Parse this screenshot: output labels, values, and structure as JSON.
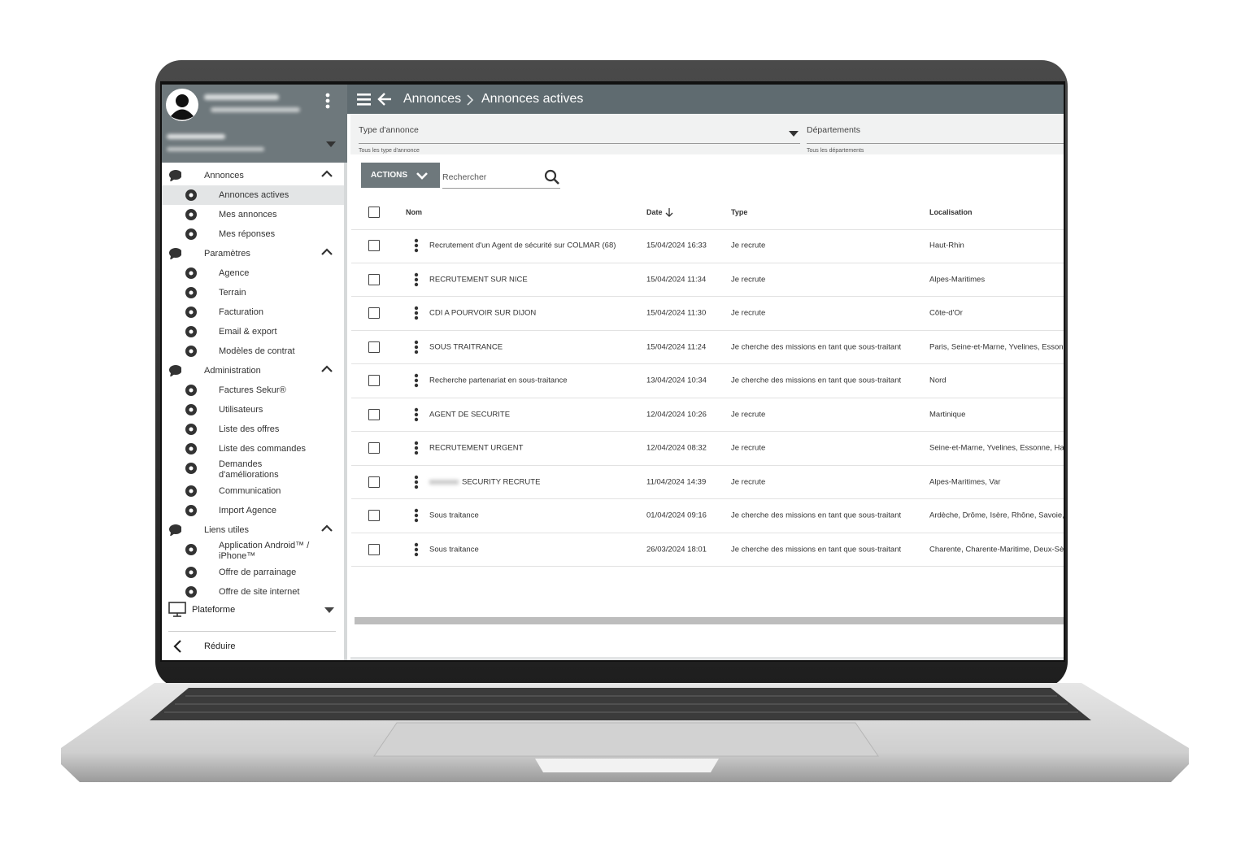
{
  "header": {
    "breadcrumb": [
      "Annonces",
      "Annonces actives"
    ]
  },
  "sidebar": {
    "groups": [
      {
        "label": "Annonces",
        "items": [
          "Annonces actives",
          "Mes annonces",
          "Mes réponses"
        ]
      },
      {
        "label": "Paramètres",
        "items": [
          "Agence",
          "Terrain",
          "Facturation",
          "Email & export",
          "Modèles de contrat"
        ]
      },
      {
        "label": "Administration",
        "items": [
          "Factures Sekur®",
          "Utilisateurs",
          "Liste des offres",
          "Liste des commandes",
          "Demandes d'améliorations",
          "Communication",
          "Import Agence"
        ]
      },
      {
        "label": "Liens utiles",
        "items": [
          "Application Android™ / iPhone™",
          "Offre de parrainage",
          "Offre de site internet"
        ]
      }
    ],
    "footer": [
      "Plateforme",
      "Réduire"
    ]
  },
  "filters": [
    {
      "label": "Type d'annonce",
      "value": "Tous les type d'annonce"
    },
    {
      "label": "Départements",
      "value": "Tous les départements"
    }
  ],
  "toolbar": {
    "button": "ACTIONS",
    "search_placeholder": "Rechercher"
  },
  "table": {
    "columns": [
      "Nom",
      "Date",
      "Type",
      "Localisation"
    ],
    "rows": [
      [
        "Recrutement d'un Agent de sécurité sur COLMAR (68)",
        "15/04/2024 16:33",
        "Je recrute",
        "Haut-Rhin"
      ],
      [
        "RECRUTEMENT SUR NICE",
        "15/04/2024 11:34",
        "Je recrute",
        "Alpes-Maritimes"
      ],
      [
        "CDI A POURVOIR SUR DIJON",
        "15/04/2024 11:30",
        "Je recrute",
        "Côte-d'Or"
      ],
      [
        "SOUS TRAITRANCE",
        "15/04/2024 11:24",
        "Je cherche des missions en tant que sous-traitant",
        "Paris, Seine-et-Marne, Yvelines, Essonne"
      ],
      [
        "Recherche partenariat en sous-traitance",
        "13/04/2024 10:34",
        "Je cherche des missions en tant que sous-traitant",
        "Nord"
      ],
      [
        "AGENT DE SECURITE",
        "12/04/2024 10:26",
        "Je recrute",
        "Martinique"
      ],
      [
        "RECRUTEMENT URGENT",
        "12/04/2024 08:32",
        "Je recrute",
        "Seine-et-Marne, Yvelines, Essonne, Hauts-de-Seine"
      ],
      [
        "SECURITY RECRUTE",
        "11/04/2024 14:39",
        "Je recrute",
        "Alpes-Maritimes, Var"
      ],
      [
        "Sous traitance",
        "01/04/2024 09:16",
        "Je cherche des missions en tant que sous-traitant",
        "Ardèche, Drôme, Isère, Rhône, Savoie, Haute-Savoie"
      ],
      [
        "Sous traitance",
        "26/03/2024 18:01",
        "Je cherche des missions en tant que sous-traitant",
        "Charente, Charente-Maritime, Deux-Sèvres"
      ]
    ]
  }
}
